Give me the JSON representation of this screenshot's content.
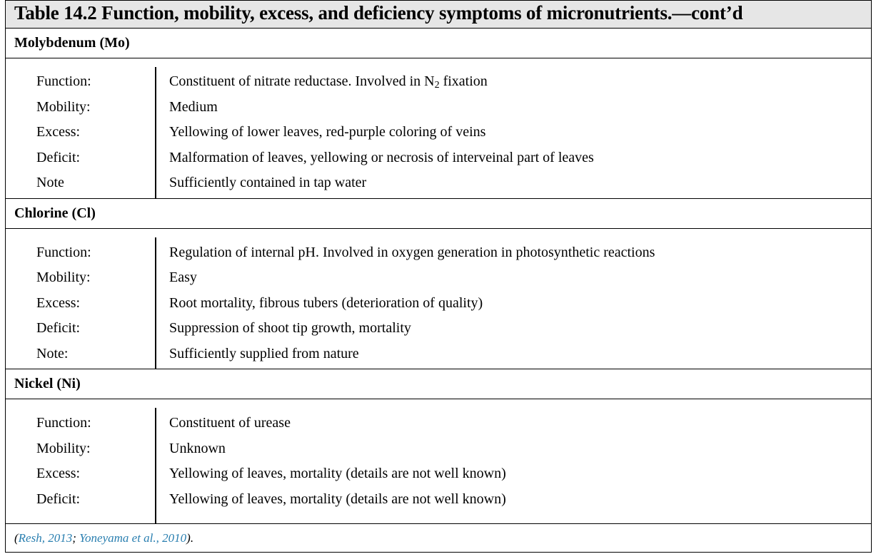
{
  "title": "Table 14.2 Function, mobility, excess, and deficiency symptoms of micronutrients.—cont’d",
  "sections": [
    {
      "heading": "Molybdenum (Mo)",
      "rows": [
        {
          "key": "Function:",
          "value_pre": "Constituent of nitrate reductase. Involved in N",
          "value_sub": "2",
          "value_post": " fixation"
        },
        {
          "key": "Mobility:",
          "value": "Medium"
        },
        {
          "key": "Excess:",
          "value": "Yellowing of lower leaves, red-purple coloring of veins"
        },
        {
          "key": "Deficit:",
          "value": "Malformation of leaves, yellowing or necrosis of interveinal part of leaves"
        },
        {
          "key": "Note",
          "value": "Sufficiently contained in tap water"
        }
      ]
    },
    {
      "heading": "Chlorine (Cl)",
      "rows": [
        {
          "key": "Function:",
          "value": "Regulation of internal pH. Involved in oxygen generation in photosynthetic reactions"
        },
        {
          "key": "Mobility:",
          "value": "Easy"
        },
        {
          "key": "Excess:",
          "value": "Root mortality, fibrous tubers (deterioration of quality)"
        },
        {
          "key": "Deficit:",
          "value": "Suppression of shoot tip growth, mortality"
        },
        {
          "key": "Note:",
          "value": "Sufficiently supplied from nature"
        }
      ]
    },
    {
      "heading": "Nickel (Ni)",
      "rows": [
        {
          "key": "Function:",
          "value": "Constituent of urease"
        },
        {
          "key": "Mobility:",
          "value": "Unknown"
        },
        {
          "key": "Excess:",
          "value": "Yellowing of leaves, mortality (details are not well known)"
        },
        {
          "key": "Deficit:",
          "value": "Yellowing of leaves, mortality (details are not well known)"
        }
      ]
    }
  ],
  "footer": {
    "open": "(",
    "cite1": "Resh, 2013",
    "sep": "; ",
    "cite2": "Yoneyama et al., 2010",
    "close": ")."
  },
  "colors": {
    "title_background": "#e6e6e6",
    "citation_link": "#2a7fb0"
  }
}
